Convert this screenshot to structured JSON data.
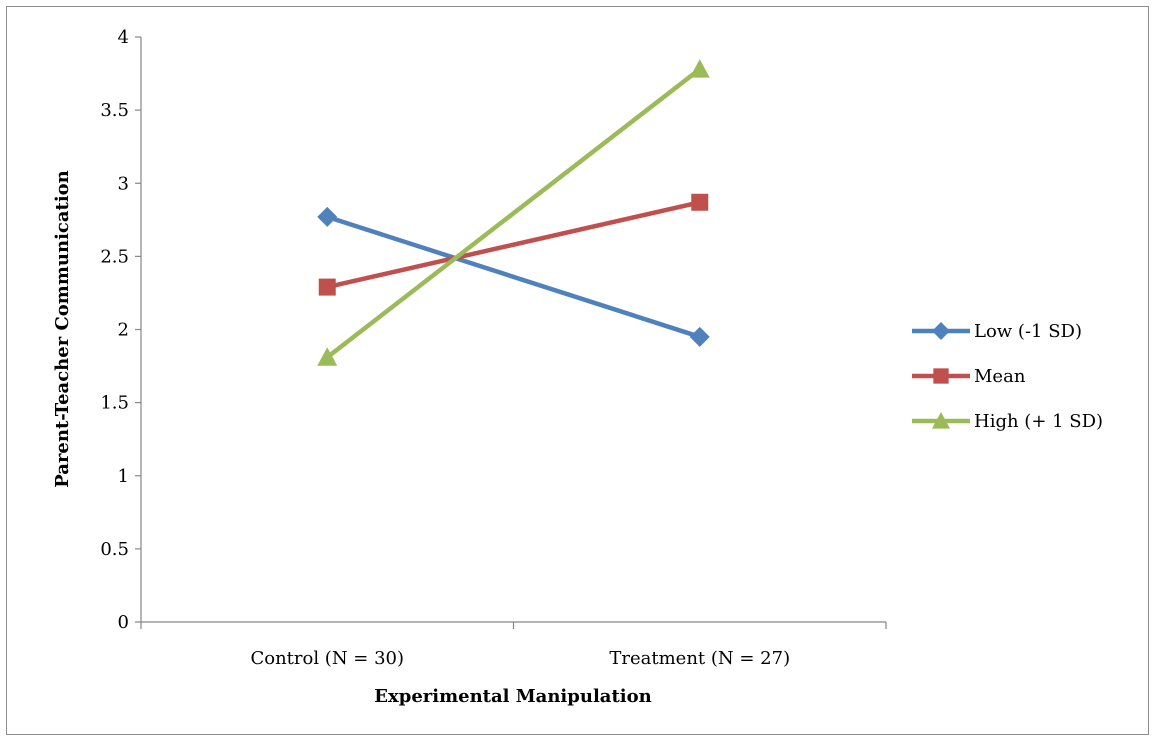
{
  "chart_data": {
    "type": "line",
    "title": "",
    "xlabel": "Experimental Manipulation",
    "ylabel": "Parent-Teacher Communication",
    "categories": [
      "Control (N = 30)",
      "Treatment (N = 27)"
    ],
    "ylim": [
      0,
      4
    ],
    "yticks": [
      "0",
      "0.5",
      "1",
      "1.5",
      "2",
      "2.5",
      "3",
      "3.5",
      "4"
    ],
    "grid": false,
    "legend_position": "right",
    "series": [
      {
        "name": "Low (-1 SD)",
        "values": [
          2.77,
          1.95
        ],
        "color": "#4f81bd",
        "marker": "diamond"
      },
      {
        "name": "Mean",
        "values": [
          2.29,
          2.87
        ],
        "color": "#c0504d",
        "marker": "square"
      },
      {
        "name": "High (+ 1 SD)",
        "values": [
          1.81,
          3.78
        ],
        "color": "#9bbb59",
        "marker": "triangle"
      }
    ]
  }
}
